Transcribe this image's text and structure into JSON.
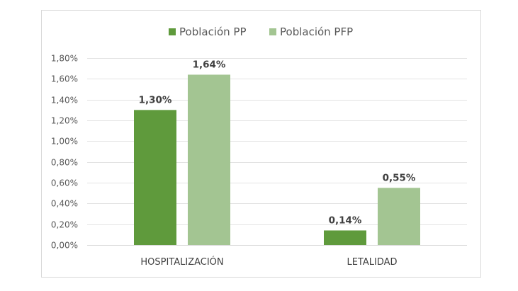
{
  "chart_data": {
    "type": "bar",
    "title": "",
    "xlabel": "",
    "ylabel": "",
    "categories": [
      "HOSPITALIZACIÓN",
      "LETALIDAD"
    ],
    "series": [
      {
        "name": "Población PP",
        "values": [
          1.3,
          0.14
        ],
        "labels": [
          "1,30%",
          "0,14%"
        ],
        "color": "#5f9a3c"
      },
      {
        "name": "Población PFP",
        "values": [
          1.64,
          0.55
        ],
        "labels": [
          "1,64%",
          "0,55%"
        ],
        "color": "#a3c592"
      }
    ],
    "ylim": [
      0,
      1.8
    ],
    "yticks": [
      0,
      0.2,
      0.4,
      0.6,
      0.8,
      1.0,
      1.2,
      1.4,
      1.6,
      1.8
    ],
    "ytick_labels": [
      "0,00%",
      "0,20%",
      "0,40%",
      "0,60%",
      "0,80%",
      "1,00%",
      "1,20%",
      "1,40%",
      "1,60%",
      "1,80%"
    ],
    "grid": true,
    "legend": "top-center"
  }
}
